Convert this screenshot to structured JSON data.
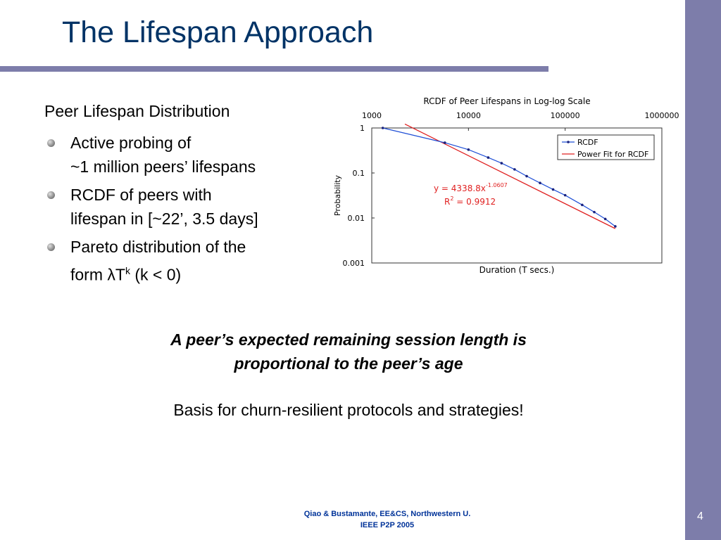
{
  "slide": {
    "title": "The Lifespan Approach",
    "lead": "Peer Lifespan Distribution",
    "bullets": [
      {
        "line1": "Active probing of",
        "line2": "~1 million peers’ lifespans"
      },
      {
        "line1": "RCDF of peers with",
        "line2": "lifespan in [~22’, 3.5 days]"
      },
      {
        "line1": "Pareto distribution of the",
        "line2_pre": "form λT",
        "line2_sup": "k",
        "line2_post": " (k < 0)"
      }
    ],
    "emphasis": [
      "A peer’s expected remaining session length is",
      "proportional to the peer’s age"
    ],
    "basis": "Basis for churn-resilient protocols and strategies!",
    "footer": [
      "Qiao & Bustamante, EE&CS, Northwestern U.",
      "IEEE P2P 2005"
    ],
    "page_number": "4"
  },
  "colors": {
    "accent_band": "#7d7daa",
    "title_text": "#003366",
    "footer_text": "#003399",
    "rcdf_series": "#1f4fd6",
    "fit_series": "#e02020"
  },
  "chart_data": {
    "type": "line",
    "title": "RCDF of Peer Lifespans in Log-log Scale",
    "xlabel": "Duration (T secs.)",
    "ylabel": "Probability",
    "x_scale": "log",
    "y_scale": "log",
    "xlim": [
      1000,
      1000000
    ],
    "ylim": [
      0.001,
      1
    ],
    "x_ticks": [
      "1000",
      "10000",
      "100000",
      "1000000"
    ],
    "y_ticks": [
      "1",
      "0.1",
      "0.01",
      "0.001"
    ],
    "legend_position": "top-right",
    "series": [
      {
        "name": "RCDF",
        "style": "line-with-markers",
        "x": [
          1300,
          5700,
          10000,
          16000,
          22000,
          30000,
          40000,
          55000,
          75000,
          100000,
          150000,
          200000,
          260000,
          330000
        ],
        "y": [
          1.0,
          0.47,
          0.33,
          0.22,
          0.165,
          0.12,
          0.085,
          0.06,
          0.043,
          0.032,
          0.0195,
          0.0135,
          0.0095,
          0.0065
        ]
      },
      {
        "name": "Power Fit for RCDF",
        "style": "line",
        "x": [
          2200,
          330000
        ],
        "y": [
          1.22,
          0.0058
        ]
      }
    ],
    "annotations": {
      "equation_base": "y = 4338.8x",
      "equation_exponent": "-1.0607",
      "r_squared_base": "R",
      "r_squared_exponent": "2",
      "r_squared_value": " = 0.9912"
    }
  }
}
